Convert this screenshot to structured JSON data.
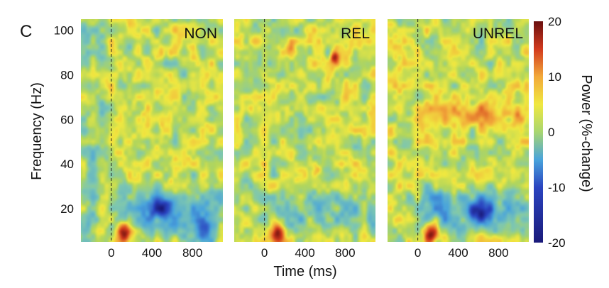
{
  "panel_letter": "C",
  "chart_data": {
    "type": "heatmap",
    "xlabel": "Time (ms)",
    "ylabel": "Frequency (Hz)",
    "xlim": [
      -300,
      1100
    ],
    "ylim": [
      5,
      105
    ],
    "x_ticks": [
      0,
      400,
      800
    ],
    "y_ticks": [
      20,
      40,
      60,
      80,
      100
    ],
    "stimulus_onset_ms": 0,
    "colorbar": {
      "label": "Power (%-change)",
      "range": [
        -20,
        20
      ],
      "ticks": [
        20,
        10,
        0,
        -10,
        -20
      ],
      "colormap": [
        "#1a1a7a",
        "#2a44c0",
        "#49a4dc",
        "#7ec7b0",
        "#c4dc5a",
        "#f0e840",
        "#f2a93a",
        "#d23a1e",
        "#6a0f0f"
      ]
    },
    "background_level": 2,
    "panels": [
      {
        "title": "NON",
        "features": [
          {
            "kind": "red_burst",
            "t_ms": 130,
            "f_hz": 9,
            "peak": 18
          },
          {
            "kind": "low_beta_decrease",
            "t_ms": 480,
            "f_hz": 20,
            "peak": -14
          },
          {
            "kind": "low_beta_decrease",
            "t_ms": 900,
            "f_hz": 10,
            "peak": -11
          },
          {
            "kind": "blue_band",
            "t_ms_range": [
              0,
              1100
            ],
            "f_hz_range": [
              10,
              28
            ],
            "peak": -6
          },
          {
            "kind": "blue_region_left",
            "t_ms_range": [
              -300,
              -80
            ],
            "f_hz_range": [
              10,
              105
            ],
            "peak": -3
          }
        ]
      },
      {
        "title": "REL",
        "features": [
          {
            "kind": "red_burst",
            "t_ms": 130,
            "f_hz": 9,
            "peak": 18
          },
          {
            "kind": "gamma_hotspot",
            "t_ms": 700,
            "f_hz": 88,
            "peak": 14
          },
          {
            "kind": "gamma_hotspot",
            "t_ms": 260,
            "f_hz": 91,
            "peak": 7
          },
          {
            "kind": "blue_band",
            "t_ms_range": [
              0,
              1100
            ],
            "f_hz_range": [
              10,
              26
            ],
            "peak": -5
          },
          {
            "kind": "yellow_spot",
            "t_ms": 520,
            "f_hz": 37,
            "peak": 7
          }
        ]
      },
      {
        "title": "UNREL",
        "features": [
          {
            "kind": "red_burst",
            "t_ms": 130,
            "f_hz": 9,
            "peak": 18
          },
          {
            "kind": "low_beta_decrease",
            "t_ms": 620,
            "f_hz": 18,
            "peak": -15
          },
          {
            "kind": "blue_band",
            "t_ms_range": [
              0,
              1100
            ],
            "f_hz_range": [
              12,
              28
            ],
            "peak": -7
          },
          {
            "kind": "yellow_band",
            "t_ms_range": [
              0,
              1100
            ],
            "f_hz_range": [
              58,
              66
            ],
            "peak": 6
          }
        ]
      }
    ]
  }
}
